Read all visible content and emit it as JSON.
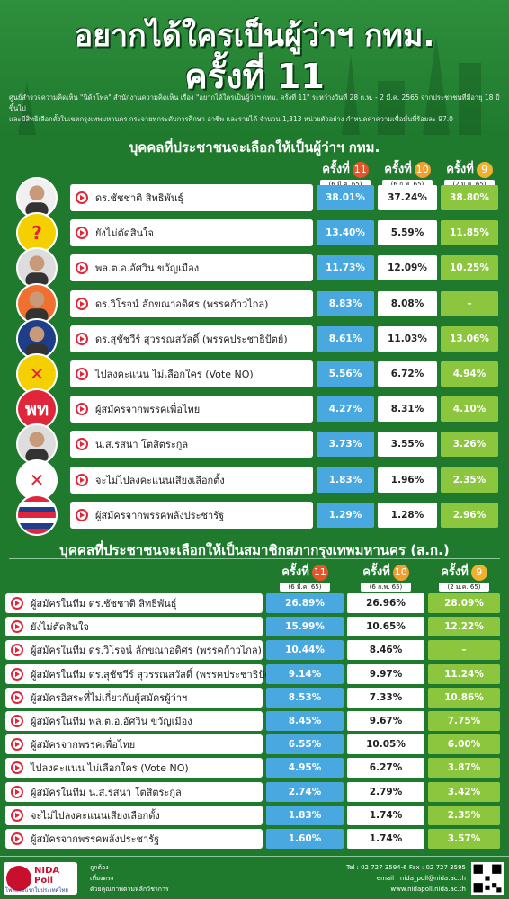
{
  "header": {
    "title_line1": "อยากได้ใครเป็นผู้ว่าฯ กทม.",
    "title_line2": "ครั้งที่ 11",
    "source_line1": "ศูนย์สำรวจความคิดเห็น \"นิด้าโพล\" สำนักงานความคิดเห็น เรื่อง \"อยากได้ใครเป็นผู้ว่าฯ กทม. ครั้งที่ 11\" ระหว่างวันที่ 28 ก.พ. - 2 มี.ค. 2565 จากประชาชนที่มีอายุ 18 ปีขึ้นไป",
    "source_line2": "และมีสิทธิเลือกตั้งในเขตกรุงเทพมหานคร กระจายทุกระดับการศึกษา อาชีพ และรายได้ จำนวน 1,313 หน่วยตัวอย่าง กำหนดค่าความเชื่อมั่นที่ร้อยละ 97.0"
  },
  "columns": {
    "round_label": "ครั้งที่",
    "r11": "11",
    "r10": "10",
    "r9": "9",
    "d11": "(6 มี.ค. 65)",
    "d10": "(6 ก.พ. 65)",
    "d9": "(2 ม.ค. 65)"
  },
  "colors": {
    "c11": "#4aa8e0",
    "c10": "#ffffff",
    "c9": "#8cc63f",
    "accent": "#e0263a"
  },
  "chart_data": [
    {
      "type": "table",
      "title": "บุคคลที่ประชาชนจะเลือกให้เป็นผู้ว่าฯ กทม.",
      "columns": [
        "ครั้งที่ 11",
        "ครั้งที่ 10",
        "ครั้งที่ 9"
      ],
      "rows": [
        {
          "label": "ดร.ชัชชาติ สิทธิพันธุ์",
          "avatar": "person-icon",
          "v11": "38.01%",
          "v10": "37.24%",
          "v9": "38.80%"
        },
        {
          "label": "ยังไม่ตัดสินใจ",
          "avatar": "question-icon",
          "v11": "13.40%",
          "v10": "5.59%",
          "v9": "11.85%"
        },
        {
          "label": "พล.ต.อ.อัศวิน ขวัญเมือง",
          "avatar": "person-icon",
          "v11": "11.73%",
          "v10": "12.09%",
          "v9": "10.25%"
        },
        {
          "label": "ดร.วิโรจน์ ลักขณาอดิศร (พรรคก้าวไกล)",
          "avatar": "person-icon",
          "v11": "8.83%",
          "v10": "8.08%",
          "v9": "–"
        },
        {
          "label": "ดร.สุชัชวีร์ สุวรรณสวัสดิ์ (พรรคประชาธิปัตย์)",
          "avatar": "person-icon",
          "v11": "8.61%",
          "v10": "11.03%",
          "v9": "13.06%"
        },
        {
          "label": "ไปลงคะแนน ไม่เลือกใคร (Vote NO)",
          "avatar": "cross-icon",
          "v11": "5.56%",
          "v10": "6.72%",
          "v9": "4.94%"
        },
        {
          "label": "ผู้สมัครจากพรรคเพื่อไทย",
          "avatar": "party-logo-icon",
          "avatar_text": "พท",
          "v11": "4.27%",
          "v10": "8.31%",
          "v9": "4.10%"
        },
        {
          "label": "น.ส.รสนา โตสิตระกูล",
          "avatar": "person-icon",
          "v11": "3.73%",
          "v10": "3.55%",
          "v9": "3.26%"
        },
        {
          "label": "จะไม่ไปลงคะแนนเสียงเลือกตั้ง",
          "avatar": "ballot-cross-icon",
          "v11": "1.83%",
          "v10": "1.96%",
          "v9": "2.35%"
        },
        {
          "label": "ผู้สมัครจากพรรคพลังประชารัฐ",
          "avatar": "party-logo-icon",
          "v11": "1.29%",
          "v10": "1.28%",
          "v9": "2.96%"
        }
      ]
    },
    {
      "type": "table",
      "title": "บุคคลที่ประชาชนจะเลือกให้เป็นสมาชิกสภากรุงเทพมหานคร (ส.ก.)",
      "columns": [
        "ครั้งที่ 11",
        "ครั้งที่ 10",
        "ครั้งที่ 9"
      ],
      "rows": [
        {
          "label": "ผู้สมัครในทีม ดร.ชัชชาติ สิทธิพันธุ์",
          "v11": "26.89%",
          "v10": "26.96%",
          "v9": "28.09%"
        },
        {
          "label": "ยังไม่ตัดสินใจ",
          "v11": "15.99%",
          "v10": "10.65%",
          "v9": "12.22%"
        },
        {
          "label": "ผู้สมัครในทีม ดร.วิโรจน์ ลักขณาอดิศร (พรรคก้าวไกล)",
          "v11": "10.44%",
          "v10": "8.46%",
          "v9": "–"
        },
        {
          "label": "ผู้สมัครในทีม ดร.สุชัชวีร์ สุวรรณสวัสดิ์ (พรรคประชาธิปัตย์)",
          "v11": "9.14%",
          "v10": "9.97%",
          "v9": "11.24%"
        },
        {
          "label": "ผู้สมัครอิสระที่ไม่เกี่ยวกับผู้สมัครผู้ว่าฯ",
          "v11": "8.53%",
          "v10": "7.33%",
          "v9": "10.86%"
        },
        {
          "label": "ผู้สมัครในทีม พล.ต.อ.อัศวิน ขวัญเมือง",
          "v11": "8.45%",
          "v10": "9.67%",
          "v9": "7.75%"
        },
        {
          "label": "ผู้สมัครจากพรรคเพื่อไทย",
          "v11": "6.55%",
          "v10": "10.05%",
          "v9": "6.00%"
        },
        {
          "label": "ไปลงคะแนน ไม่เลือกใคร (Vote NO)",
          "v11": "4.95%",
          "v10": "6.27%",
          "v9": "3.87%"
        },
        {
          "label": "ผู้สมัครในทีม น.ส.รสนา โตสิตระกูล",
          "v11": "2.74%",
          "v10": "2.79%",
          "v9": "3.42%"
        },
        {
          "label": "จะไม่ไปลงคะแนนเสียงเลือกตั้ง",
          "v11": "1.83%",
          "v10": "1.74%",
          "v9": "2.35%"
        },
        {
          "label": "ผู้สมัครจากพรรคพลังประชารัฐ",
          "v11": "1.60%",
          "v10": "1.74%",
          "v9": "3.57%"
        }
      ]
    }
  ],
  "footer": {
    "logo_text": "NIDA Poll",
    "logo_sub": "โพลแห่งแรกในประเทศไทย",
    "slogan1": "ถูกต้อง",
    "slogan2": "เที่ยงตรง",
    "slogan3": "ด้วยคุณภาพตามหลักวิชาการ",
    "tel": "Tel : 02 727 3594-6 Fax : 02 727 3595",
    "email": "email : nida_poll@nida.ac.th",
    "web": "www.nidapoll.nida.ac.th"
  }
}
